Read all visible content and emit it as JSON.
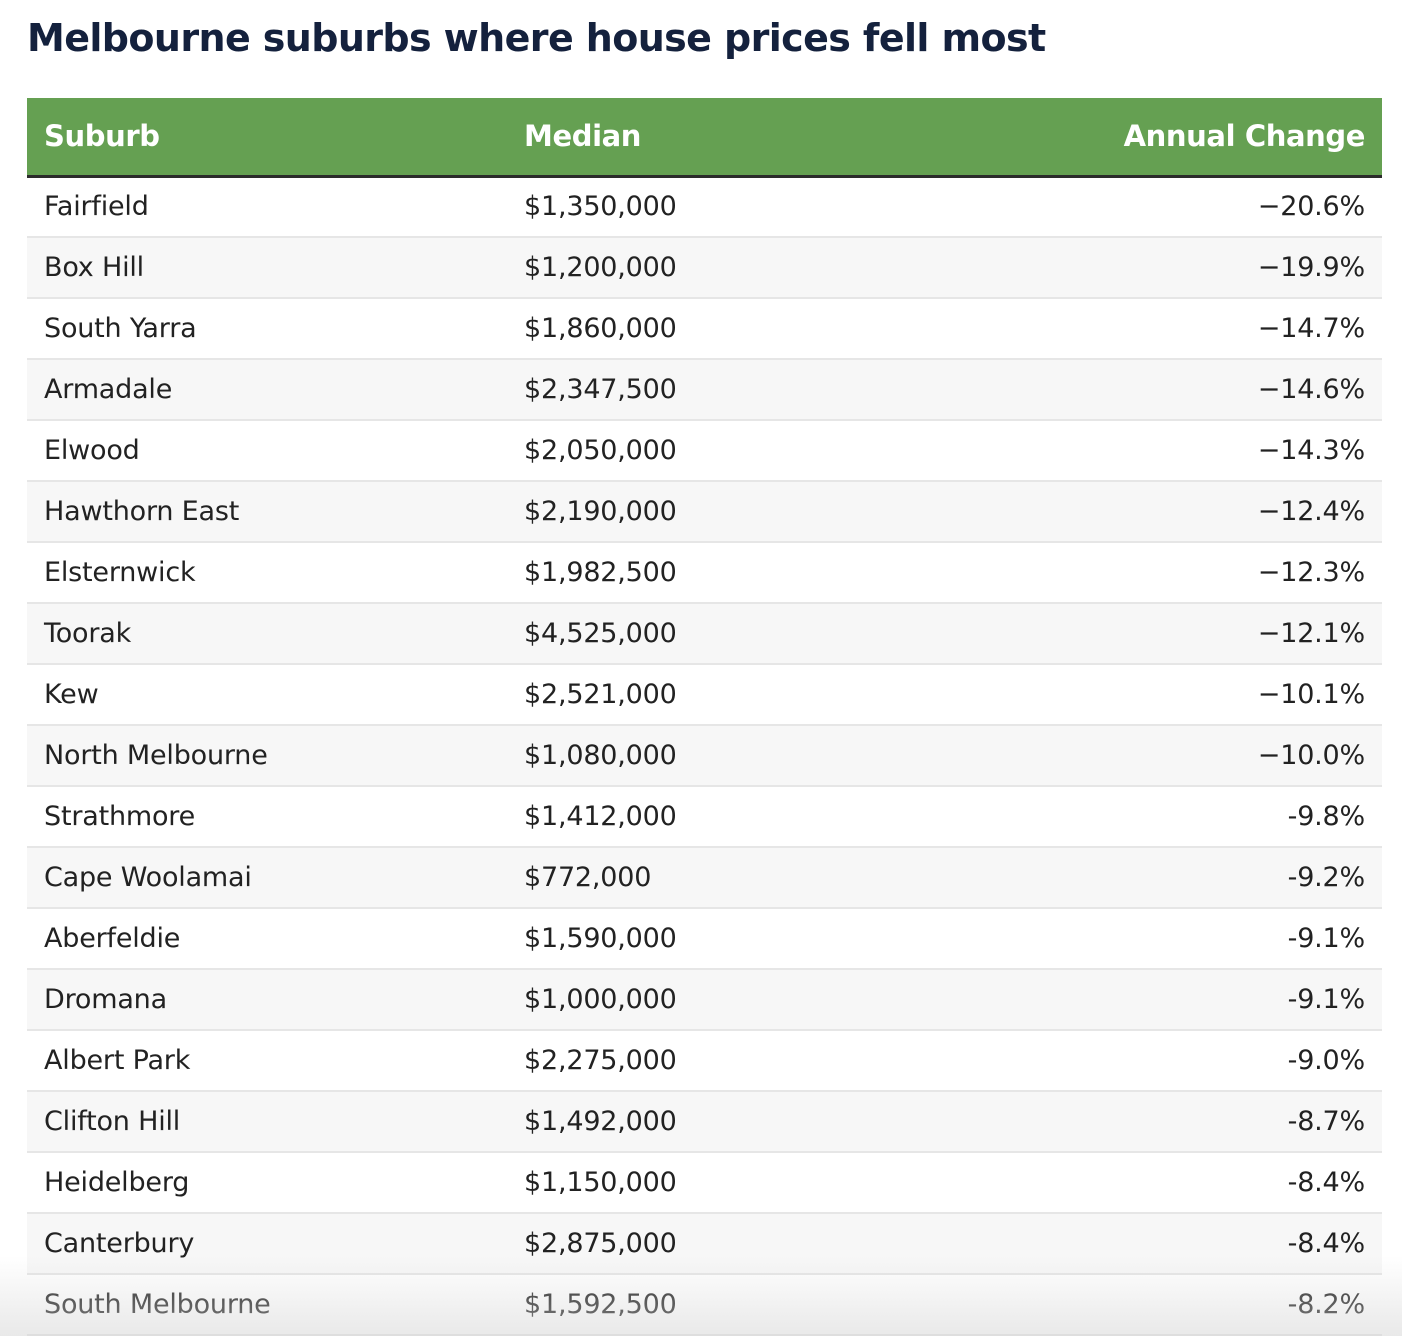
{
  "page": {
    "title": "Melbourne suburbs where house prices fell most"
  },
  "colors": {
    "header_bg": "#65a052",
    "header_text": "#ffffff",
    "title_text": "#14213d",
    "row_alt_bg": "#f7f7f7"
  },
  "table": {
    "headers": [
      "Suburb",
      "Median",
      "Annual Change"
    ]
  },
  "chart_data": {
    "type": "table",
    "title": "Melbourne suburbs where house prices fell most",
    "columns": [
      "Suburb",
      "Median",
      "Annual Change"
    ],
    "rows": [
      [
        "Fairfield",
        "$1,350,000",
        "−20.6%"
      ],
      [
        "Box Hill",
        "$1,200,000",
        "−19.9%"
      ],
      [
        "South Yarra",
        "$1,860,000",
        "−14.7%"
      ],
      [
        "Armadale",
        "$2,347,500",
        "−14.6%"
      ],
      [
        "Elwood",
        "$2,050,000",
        "−14.3%"
      ],
      [
        "Hawthorn East",
        "$2,190,000",
        "−12.4%"
      ],
      [
        "Elsternwick",
        "$1,982,500",
        "−12.3%"
      ],
      [
        "Toorak",
        "$4,525,000",
        "−12.1%"
      ],
      [
        "Kew",
        "$2,521,000",
        "−10.1%"
      ],
      [
        "North Melbourne",
        "$1,080,000",
        "−10.0%"
      ],
      [
        "Strathmore",
        "$1,412,000",
        "-9.8%"
      ],
      [
        "Cape Woolamai",
        "$772,000",
        "-9.2%"
      ],
      [
        "Aberfeldie",
        "$1,590,000",
        "-9.1%"
      ],
      [
        "Dromana",
        "$1,000,000",
        "-9.1%"
      ],
      [
        "Albert Park",
        "$2,275,000",
        "-9.0%"
      ],
      [
        "Clifton Hill",
        "$1,492,000",
        "-8.7%"
      ],
      [
        "Heidelberg",
        "$1,150,000",
        "-8.4%"
      ],
      [
        "Canterbury",
        "$2,875,000",
        "-8.4%"
      ],
      [
        "South Melbourne",
        "$1,592,500",
        "-8.2%"
      ]
    ]
  }
}
